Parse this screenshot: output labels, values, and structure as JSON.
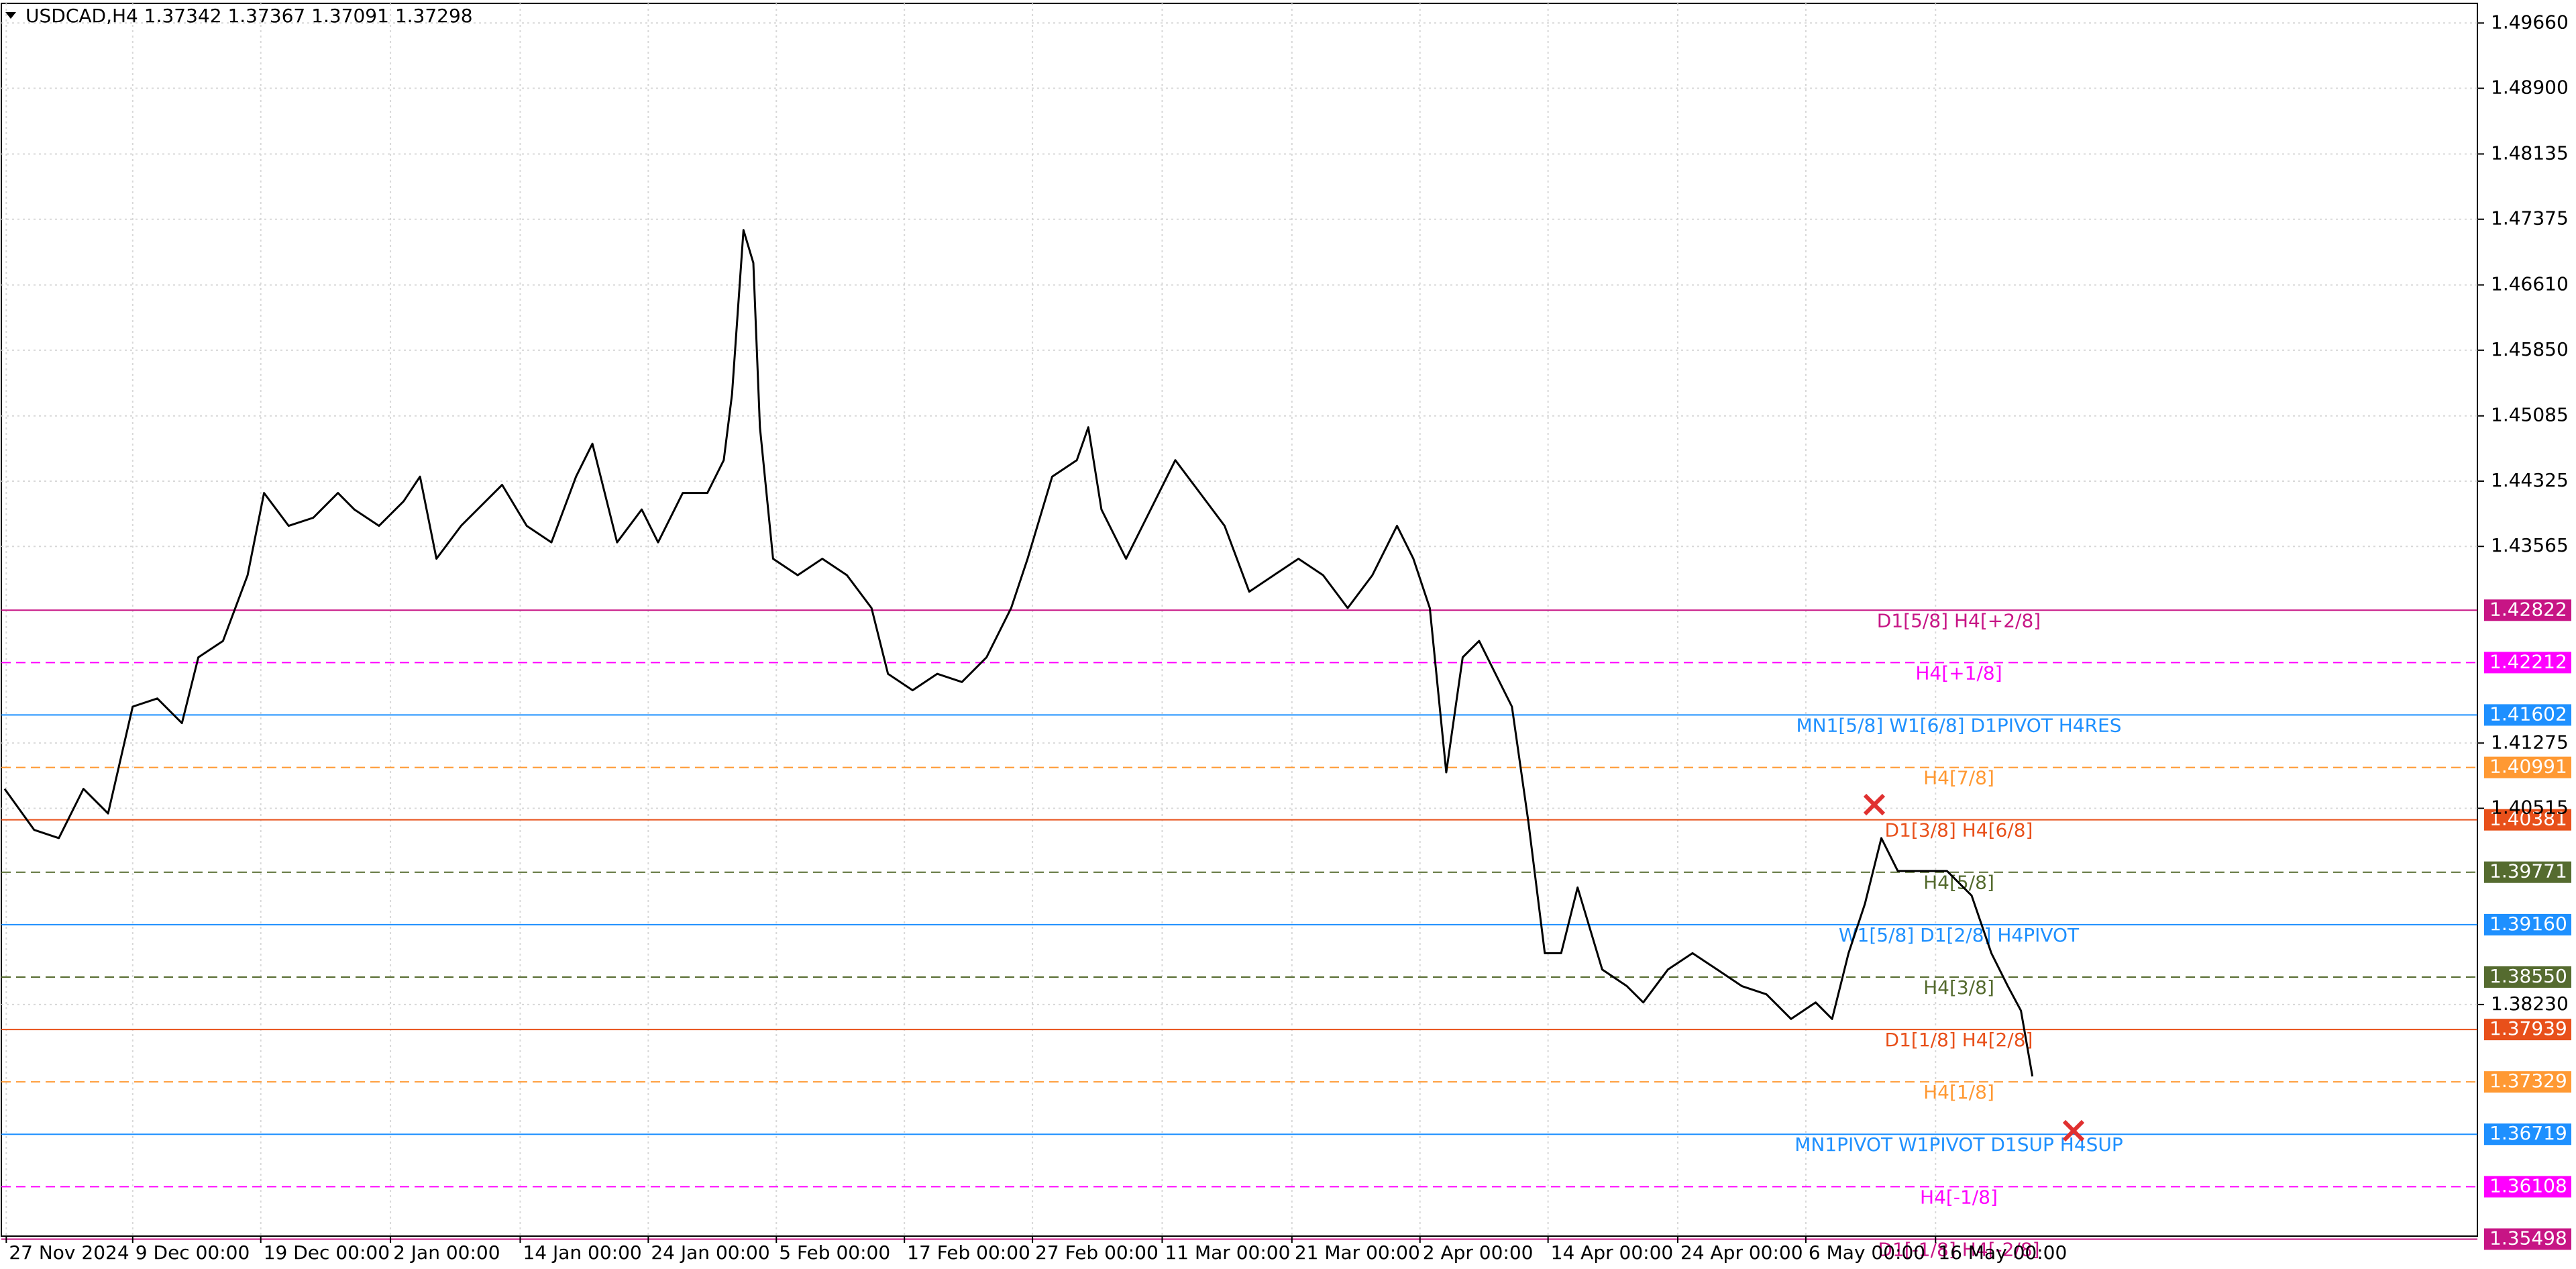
{
  "chart_data": {
    "type": "line",
    "title": "USDCAD,H4  1.37342 1.37367 1.37091 1.37298",
    "grid": true,
    "xlim": [
      0,
      1508
    ],
    "ylim": [
      1.35533,
      1.49889
    ],
    "xticks": [
      {
        "value": 3,
        "label": "27 Nov 2024"
      },
      {
        "value": 80,
        "label": "9 Dec 00:00"
      },
      {
        "value": 158,
        "label": "19 Dec 00:00"
      },
      {
        "value": 237,
        "label": "2 Jan 00:00"
      },
      {
        "value": 316,
        "label": "14 Jan 00:00"
      },
      {
        "value": 394,
        "label": "24 Jan 00:00"
      },
      {
        "value": 472,
        "label": "5 Feb 00:00"
      },
      {
        "value": 550,
        "label": "17 Feb 00:00"
      },
      {
        "value": 628,
        "label": "27 Feb 00:00"
      },
      {
        "value": 707,
        "label": "11 Mar 00:00"
      },
      {
        "value": 786,
        "label": "21 Mar 00:00"
      },
      {
        "value": 864,
        "label": "2 Apr 00:00"
      },
      {
        "value": 942,
        "label": "14 Apr 00:00"
      },
      {
        "value": 1021,
        "label": "24 Apr 00:00"
      },
      {
        "value": 1099,
        "label": "6 May 00:00"
      },
      {
        "value": 1178,
        "label": "16 May 00:00"
      }
    ],
    "yticks": [
      {
        "value": 1.4966,
        "label": "1.49660"
      },
      {
        "value": 1.489,
        "label": "1.48900"
      },
      1.48135,
      1.47375,
      {
        "value": 1.4661,
        "label": "1.46610"
      },
      {
        "value": 1.4585,
        "label": "1.45850"
      },
      1.45085,
      1.44325,
      1.43565,
      1.41275,
      1.40515,
      {
        "value": 1.3823,
        "label": "1.38230"
      }
    ],
    "series": [
      {
        "name": "USDCAD",
        "color": "#000000",
        "x": [
          2,
          20,
          35,
          50,
          65,
          80,
          95,
          110,
          120,
          135,
          150,
          160,
          175,
          190,
          205,
          215,
          230,
          245,
          255,
          265,
          280,
          295,
          305,
          320,
          335,
          350,
          360,
          375,
          390,
          400,
          415,
          430,
          440,
          445,
          452,
          458,
          462,
          470,
          485,
          500,
          515,
          530,
          540,
          555,
          570,
          585,
          600,
          615,
          625,
          640,
          655,
          662,
          670,
          685,
          700,
          715,
          730,
          745,
          760,
          775,
          790,
          805,
          820,
          835,
          850,
          860,
          870,
          880,
          890,
          900,
          910,
          920,
          930,
          940,
          950,
          960,
          975,
          990,
          1000,
          1015,
          1030,
          1045,
          1060,
          1075,
          1090,
          1105,
          1115,
          1125,
          1135,
          1145,
          1155,
          1170,
          1185,
          1200,
          1212,
          1222,
          1230,
          1237
        ],
        "values": [
          1.40742,
          1.40263,
          1.40168,
          1.40742,
          1.40455,
          1.41699,
          1.41794,
          1.41507,
          1.42273,
          1.42464,
          1.4323,
          1.44187,
          1.43804,
          1.43899,
          1.44187,
          1.43995,
          1.43804,
          1.44091,
          1.44378,
          1.43421,
          1.43804,
          1.44091,
          1.44282,
          1.43804,
          1.43612,
          1.44378,
          1.44761,
          1.43612,
          1.43995,
          1.43612,
          1.44187,
          1.44187,
          1.44569,
          1.45335,
          1.47249,
          1.46866,
          1.44952,
          1.43421,
          1.4323,
          1.43421,
          1.4323,
          1.42847,
          1.42081,
          1.4189,
          1.42081,
          1.41986,
          1.42273,
          1.42847,
          1.43421,
          1.44378,
          1.44569,
          1.44952,
          1.43995,
          1.43421,
          1.43995,
          1.44569,
          1.44187,
          1.43804,
          1.43038,
          1.4323,
          1.43421,
          1.4323,
          1.42847,
          1.4323,
          1.43804,
          1.43421,
          1.42847,
          1.40933,
          1.42273,
          1.42464,
          1.42081,
          1.41699,
          1.40359,
          1.38828,
          1.38828,
          1.39593,
          1.38637,
          1.38445,
          1.38254,
          1.38637,
          1.38828,
          1.38637,
          1.38445,
          1.38349,
          1.38062,
          1.38254,
          1.38062,
          1.38828,
          1.39402,
          1.40168,
          1.39785,
          1.39785,
          1.39785,
          1.39498,
          1.38828,
          1.38445,
          1.38158,
          1.37393
        ]
      }
    ],
    "levels": [
      {
        "name": "D1[5/8] H4[+2/8]",
        "value": 1.42822,
        "color": "#c71585",
        "dashed": false
      },
      {
        "name": "H4[+1/8]",
        "value": 1.42212,
        "color": "#ff00ff",
        "dashed": true
      },
      {
        "name": "MN1[5/8] W1[6/8] D1PIVOT H4RES",
        "value": 1.41602,
        "color": "#1e90ff",
        "dashed": false
      },
      {
        "name": "H4[7/8]",
        "value": 1.40991,
        "color": "#ff9933",
        "dashed": true
      },
      {
        "name": "D1[3/8] H4[6/8]",
        "value": 1.40381,
        "color": "#e8501a",
        "dashed": false
      },
      {
        "name": "H4[5/8]",
        "value": 1.39771,
        "color": "#556b2f",
        "dashed": true
      },
      {
        "name": "W1[5/8] D1[2/8] H4PIVOT",
        "value": 1.3916,
        "value_label": "1.39160",
        "color": "#1e90ff",
        "dashed": false
      },
      {
        "name": "H4[3/8]",
        "value": 1.3855,
        "value_label": "1.38550",
        "color": "#556b2f",
        "dashed": true
      },
      {
        "name": "D1[1/8] H4[2/8]",
        "value": 1.37939,
        "color": "#e8501a",
        "dashed": false
      },
      {
        "name": "H4[1/8]",
        "value": 1.37329,
        "color": "#ff9933",
        "dashed": true
      },
      {
        "name": "MN1PIVOT W1PIVOT D1SUP H4SUP",
        "value": 1.36719,
        "color": "#1e90ff",
        "dashed": false
      },
      {
        "name": "H4[-1/8]",
        "value": 1.36108,
        "color": "#ff00ff",
        "dashed": true
      },
      {
        "name": "D1[-1/8] H4[-2/8]",
        "value": 1.35498,
        "color": "#c71585",
        "dashed": false
      }
    ]
  }
}
